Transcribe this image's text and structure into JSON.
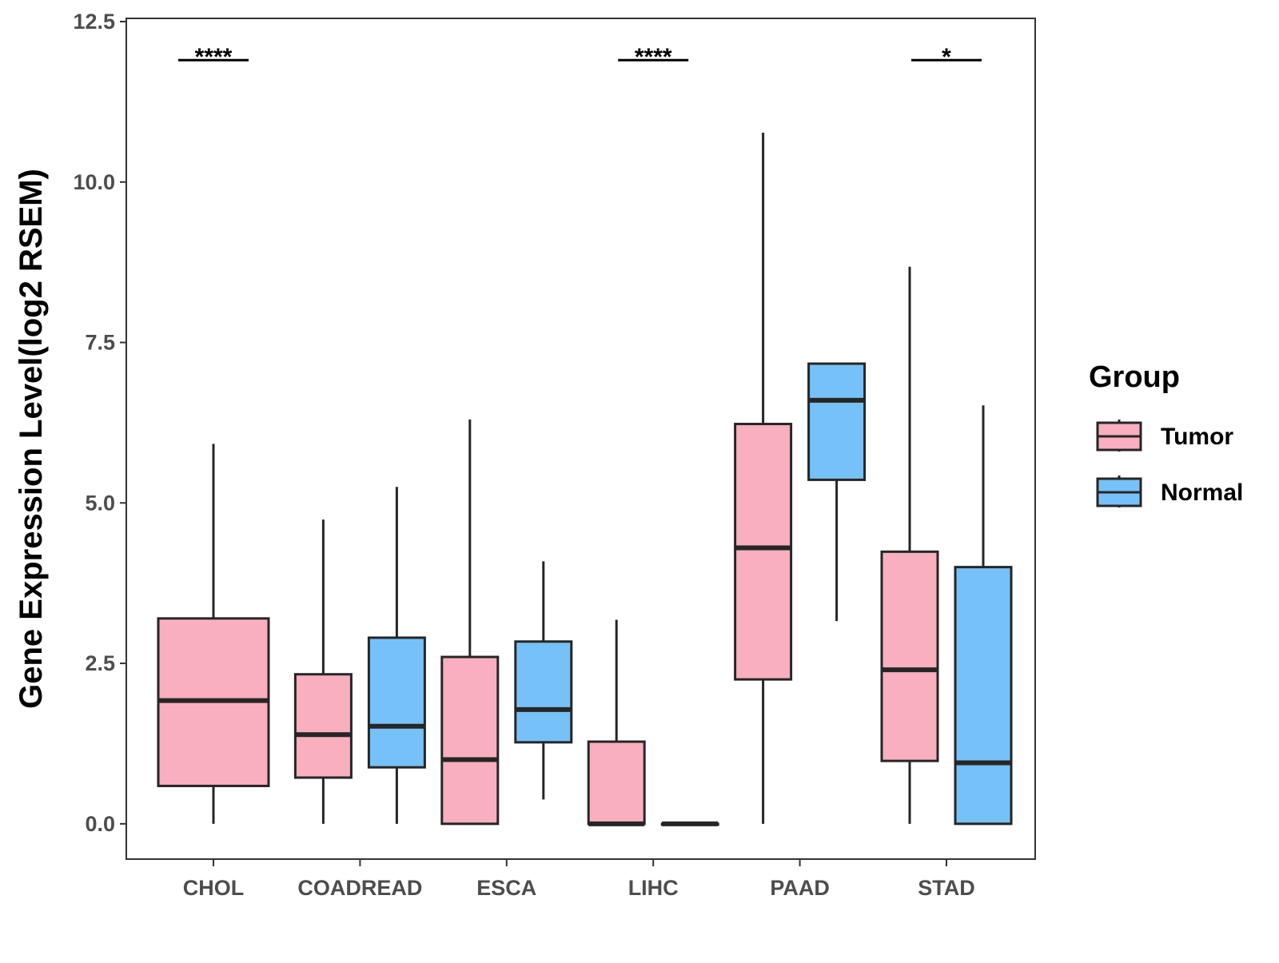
{
  "chart_data": {
    "type": "boxplot",
    "title": "",
    "xlabel": "",
    "ylabel": "Gene Expression Level(log2 RSEM)",
    "ylim": [
      -0.55,
      12.55
    ],
    "yticks": [
      0.0,
      2.5,
      5.0,
      7.5,
      10.0,
      12.5
    ],
    "ytick_labels": [
      "0.0",
      "2.5",
      "5.0",
      "7.5",
      "10.0",
      "12.5"
    ],
    "categories": [
      "CHOL",
      "COADREAD",
      "ESCA",
      "LIHC",
      "PAAD",
      "STAD"
    ],
    "legend": {
      "title": "Group",
      "position": "right",
      "entries": [
        {
          "name": "Tumor",
          "color": "#FAAFBE"
        },
        {
          "name": "Normal",
          "color": "#76C1F7"
        }
      ]
    },
    "series": [
      {
        "name": "Tumor",
        "color": "#FAAFBE",
        "boxes": [
          {
            "category": "CHOL",
            "min": 0.0,
            "q1": 0.59,
            "median": 1.92,
            "q3": 3.2,
            "max": 5.92
          },
          {
            "category": "COADREAD",
            "min": 0.0,
            "q1": 0.72,
            "median": 1.39,
            "q3": 2.33,
            "max": 4.74
          },
          {
            "category": "ESCA",
            "min": 0.0,
            "q1": 0.0,
            "median": 1.0,
            "q3": 2.6,
            "max": 6.3
          },
          {
            "category": "LIHC",
            "min": 0.0,
            "q1": 0.0,
            "median": 0.0,
            "q3": 1.28,
            "max": 3.18
          },
          {
            "category": "PAAD",
            "min": 0.0,
            "q1": 2.25,
            "median": 4.3,
            "q3": 6.23,
            "max": 10.77
          },
          {
            "category": "STAD",
            "min": 0.0,
            "q1": 0.98,
            "median": 2.4,
            "q3": 4.24,
            "max": 8.68
          }
        ]
      },
      {
        "name": "Normal",
        "color": "#76C1F7",
        "boxes": [
          {
            "category": "COADREAD",
            "min": 0.0,
            "q1": 0.88,
            "median": 1.52,
            "q3": 2.9,
            "max": 5.25
          },
          {
            "category": "ESCA",
            "min": 0.38,
            "q1": 1.27,
            "median": 1.78,
            "q3": 2.84,
            "max": 4.09
          },
          {
            "category": "LIHC",
            "min": 0.0,
            "q1": 0.0,
            "median": 0.0,
            "q3": 0.0,
            "max": 0.0
          },
          {
            "category": "PAAD",
            "min": 3.16,
            "q1": 5.36,
            "median": 6.6,
            "q3": 7.17,
            "max": 7.17
          },
          {
            "category": "STAD",
            "min": 0.0,
            "q1": 0.0,
            "median": 0.95,
            "q3": 4.0,
            "max": 6.52
          }
        ]
      }
    ],
    "annotations": [
      {
        "category": "CHOL",
        "text": "****",
        "y": 11.9
      },
      {
        "category": "LIHC",
        "text": "****",
        "y": 11.9
      },
      {
        "category": "STAD",
        "text": "*",
        "y": 11.9
      }
    ]
  }
}
